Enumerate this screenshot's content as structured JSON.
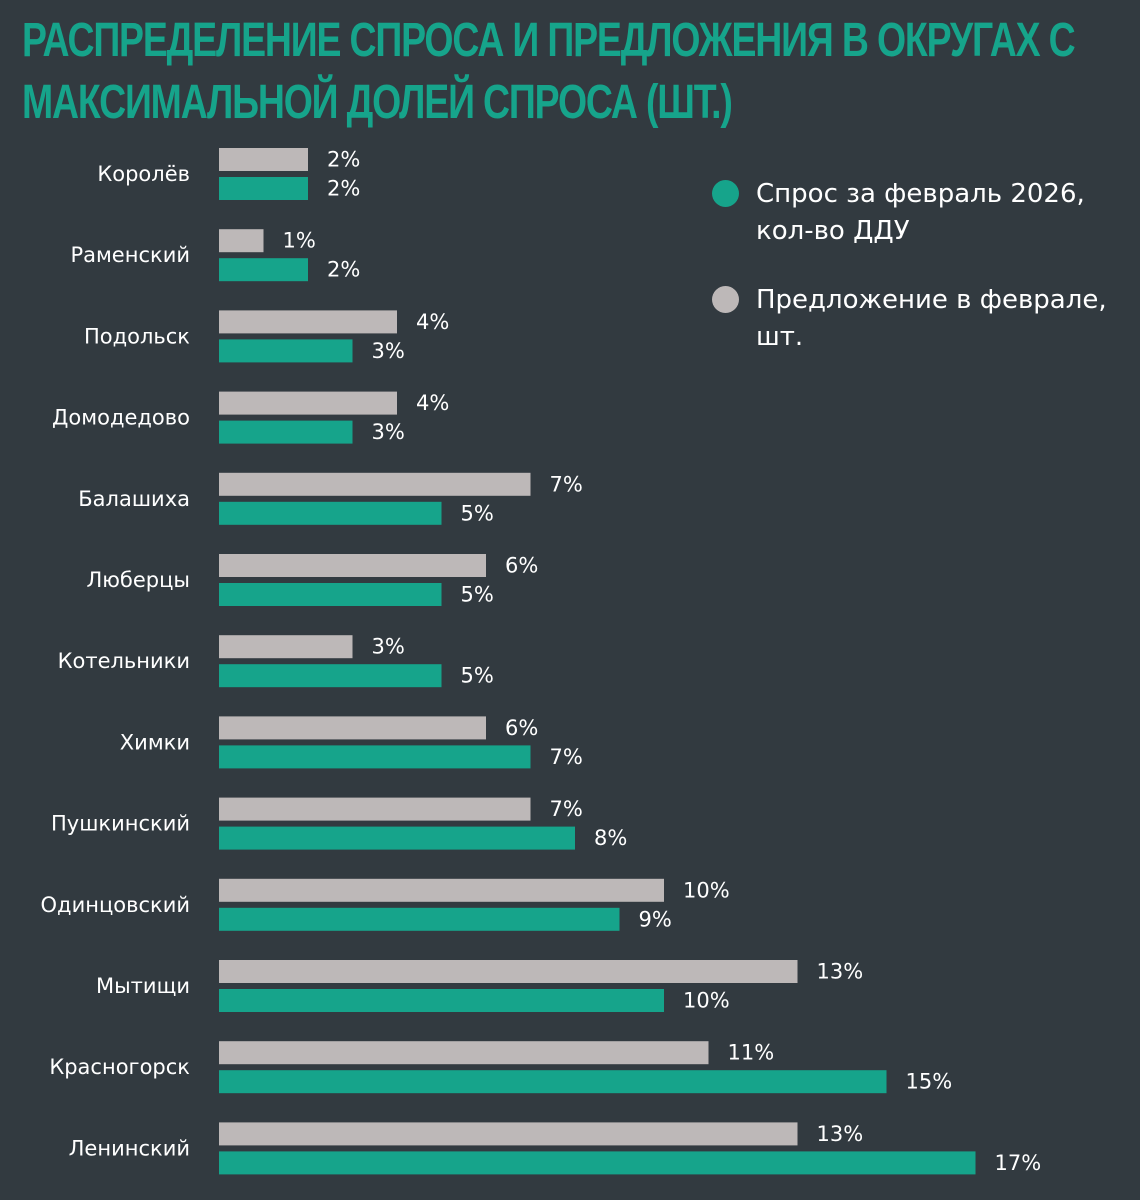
{
  "title": {
    "line1": "РАСПРЕДЕЛЕНИЕ СПРОСА И ПРЕДЛОЖЕНИЯ В ОКРУГАХ С",
    "line2": "МАКСИМАЛЬНОЙ ДОЛЕЙ СПРОСА (ШТ.)"
  },
  "legend": {
    "demand_line1": "Спрос за февраль 2026,",
    "demand_line2": "кол-во ДДУ",
    "supply_line1": "Предложение в феврале,",
    "supply_line2": "шт."
  },
  "colors": {
    "background": "#323a40",
    "demand": "#16a48b",
    "supply": "#bdb8b8",
    "title": "#16a48b",
    "text": "#ffffff"
  },
  "chart_data": {
    "type": "bar",
    "orientation": "horizontal",
    "title": "Распределение спроса и предложения в округах с максимальной долей спроса (шт.)",
    "categories": [
      "Королёв",
      "Раменский",
      "Подольск",
      "Домодедово",
      "Балашиха",
      "Люберцы",
      "Котельники",
      "Химки",
      "Пушкинский",
      "Одинцовский",
      "Мытищи",
      "Красногорск",
      "Ленинский"
    ],
    "series": [
      {
        "name": "Предложение в феврале, шт.",
        "key": "supply",
        "values": [
          2,
          1,
          4,
          4,
          7,
          6,
          3,
          6,
          7,
          10,
          13,
          11,
          13
        ],
        "labels": [
          "2%",
          "1%",
          "4%",
          "4%",
          "7%",
          "6%",
          "3%",
          "6%",
          "7%",
          "10%",
          "13%",
          "11%",
          "13%"
        ]
      },
      {
        "name": "Спрос за февраль 2026, кол-во ДДУ",
        "key": "demand",
        "values": [
          2,
          2,
          3,
          3,
          5,
          5,
          5,
          7,
          8,
          9,
          10,
          15,
          17
        ],
        "labels": [
          "2%",
          "2%",
          "3%",
          "3%",
          "5%",
          "5%",
          "5%",
          "7%",
          "8%",
          "9%",
          "10%",
          "15%",
          "17%"
        ]
      }
    ],
    "unit": "%",
    "xlim": [
      0,
      17
    ],
    "legend_position": "top-right",
    "grid": false
  }
}
